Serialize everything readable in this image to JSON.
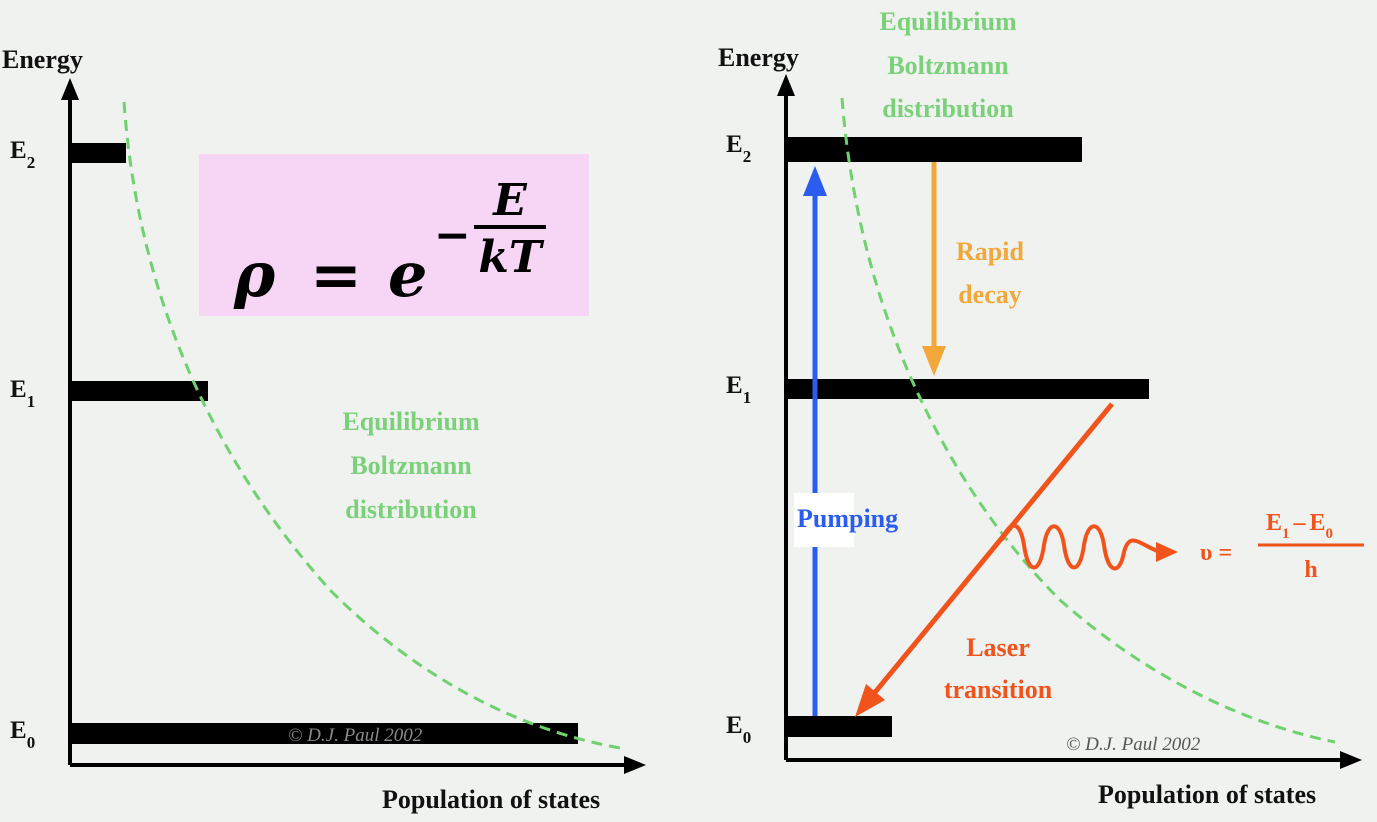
{
  "colors": {
    "background": "#f0f2f0",
    "level_bar": "#000000",
    "boltzmann_curve": "#6fd16f",
    "formula_box": "#f7d6f5",
    "pumping": "#2a5cf0",
    "rapid_decay": "#f2a73b",
    "laser": "#f0531c"
  },
  "left_panel": {
    "y_axis_label": "Energy",
    "x_axis_label": "Population of states",
    "levels": [
      {
        "main": "E",
        "sub": "2"
      },
      {
        "main": "E",
        "sub": "1"
      },
      {
        "main": "E",
        "sub": "0"
      }
    ],
    "curve_label": [
      "Equilibrium",
      "Boltzmann",
      "distribution"
    ],
    "copyright": "© D.J. Paul 2002",
    "formula": {
      "lhs": "ρ",
      "equals": "=",
      "base": "e",
      "minus": "−",
      "numerator": "E",
      "denominator": "kT"
    }
  },
  "right_panel": {
    "y_axis_label": "Energy",
    "x_axis_label": "Population of states",
    "levels": [
      {
        "main": "E",
        "sub": "2"
      },
      {
        "main": "E",
        "sub": "1"
      },
      {
        "main": "E",
        "sub": "0"
      }
    ],
    "curve_label": [
      "Equilibrium",
      "Boltzmann",
      "distribution"
    ],
    "pumping_label": "Pumping",
    "decay_label": [
      "Rapid",
      "decay"
    ],
    "laser_label": [
      "Laser",
      "transition"
    ],
    "frequency": {
      "symbol": "υ",
      "equals": "=",
      "numerator_a": "E",
      "numerator_a_sub": "1",
      "numerator_minus": "–",
      "numerator_b": "E",
      "numerator_b_sub": "0",
      "denominator": "h"
    },
    "copyright": "© D.J. Paul 2002"
  }
}
